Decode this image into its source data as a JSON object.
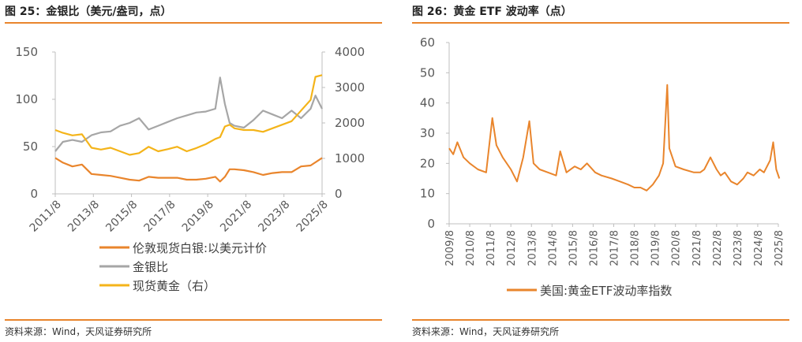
{
  "colors": {
    "accent": "#e9852c",
    "silver": "#a6a6a6",
    "gold": "#f4b41a",
    "rule": "#e9852c"
  },
  "left": {
    "title": "图 25：金银比（美元/盎司，点）",
    "source": "资料来源：Wind，天风证券研究所"
  },
  "right": {
    "title": "图 26：黄金 ETF 波动率（点）",
    "source": "资料来源：Wind，天风证券研究所"
  },
  "chart_data": [
    {
      "type": "line",
      "x_tick_labels": [
        "2011/8",
        "2013/8",
        "2015/8",
        "2017/8",
        "2019/8",
        "2021/8",
        "2023/8",
        "2025/8"
      ],
      "ylim_left": [
        0,
        150
      ],
      "yticks_left": [
        "0",
        "50",
        "100",
        "150"
      ],
      "ylim_right": [
        0,
        4000
      ],
      "yticks_right": [
        "0",
        "1000",
        "2000",
        "3000",
        "4000"
      ],
      "legend_position": "bottom",
      "series": [
        {
          "name": "伦敦现货白银:以美元计价",
          "axis": "left",
          "color": "#e9852c",
          "x": [
            2011.6,
            2012.0,
            2012.5,
            2013.0,
            2013.5,
            2014.0,
            2014.5,
            2015.0,
            2015.5,
            2016.0,
            2016.5,
            2017.0,
            2017.5,
            2018.0,
            2018.5,
            2019.0,
            2019.5,
            2020.0,
            2020.25,
            2020.5,
            2020.75,
            2021.0,
            2021.5,
            2022.0,
            2022.5,
            2023.0,
            2023.5,
            2024.0,
            2024.5,
            2025.0,
            2025.6
          ],
          "values": [
            38,
            33,
            29,
            31,
            21,
            20,
            19,
            17,
            15,
            14,
            18,
            17,
            17,
            17,
            15,
            15,
            16,
            18,
            13,
            18,
            26,
            26,
            25,
            23,
            20,
            22,
            23,
            23,
            29,
            30,
            38
          ]
        },
        {
          "name": "金银比",
          "axis": "left",
          "color": "#a6a6a6",
          "x": [
            2011.6,
            2012.0,
            2012.5,
            2013.0,
            2013.5,
            2014.0,
            2014.5,
            2015.0,
            2015.5,
            2016.0,
            2016.5,
            2017.0,
            2017.5,
            2018.0,
            2018.5,
            2019.0,
            2019.5,
            2020.0,
            2020.25,
            2020.5,
            2020.75,
            2021.0,
            2021.5,
            2022.0,
            2022.5,
            2023.0,
            2023.5,
            2024.0,
            2024.5,
            2025.0,
            2025.25,
            2025.6
          ],
          "values": [
            45,
            55,
            57,
            55,
            62,
            65,
            66,
            72,
            75,
            80,
            68,
            72,
            76,
            80,
            83,
            86,
            87,
            90,
            123,
            95,
            75,
            72,
            70,
            78,
            88,
            84,
            80,
            88,
            80,
            90,
            104,
            90
          ]
        },
        {
          "name": "现货黄金（右）",
          "axis": "right",
          "color": "#f4b41a",
          "x": [
            2011.6,
            2012.0,
            2012.5,
            2013.0,
            2013.5,
            2014.0,
            2014.5,
            2015.0,
            2015.5,
            2016.0,
            2016.5,
            2017.0,
            2017.5,
            2018.0,
            2018.5,
            2019.0,
            2019.5,
            2020.0,
            2020.25,
            2020.5,
            2020.75,
            2021.0,
            2021.5,
            2022.0,
            2022.5,
            2023.0,
            2023.5,
            2024.0,
            2024.5,
            2025.0,
            2025.25,
            2025.6
          ],
          "values": [
            1800,
            1720,
            1650,
            1680,
            1300,
            1250,
            1300,
            1200,
            1100,
            1150,
            1330,
            1200,
            1260,
            1330,
            1200,
            1290,
            1400,
            1550,
            1600,
            1900,
            1950,
            1850,
            1800,
            1800,
            1750,
            1850,
            1950,
            2050,
            2350,
            2650,
            3300,
            3350
          ]
        }
      ]
    },
    {
      "type": "line",
      "x_tick_labels": [
        "2009/8",
        "2010/8",
        "2011/8",
        "2012/8",
        "2013/8",
        "2014/8",
        "2015/8",
        "2016/8",
        "2017/8",
        "2018/8",
        "2019/8",
        "2020/8",
        "2021/8",
        "2022/8",
        "2023/8",
        "2024/8",
        "2025/8"
      ],
      "ylim": [
        0,
        60
      ],
      "yticks": [
        "0",
        "10",
        "20",
        "30",
        "40",
        "50",
        "60"
      ],
      "legend_position": "bottom",
      "series": [
        {
          "name": "美国:黄金ETF波动率指数",
          "color": "#e9852c",
          "x": [
            2009.6,
            2009.8,
            2010.0,
            2010.3,
            2010.6,
            2011.0,
            2011.4,
            2011.7,
            2011.9,
            2012.2,
            2012.6,
            2012.9,
            2013.2,
            2013.5,
            2013.7,
            2014.0,
            2014.4,
            2014.8,
            2015.0,
            2015.3,
            2015.7,
            2016.0,
            2016.3,
            2016.7,
            2017.0,
            2017.5,
            2017.9,
            2018.3,
            2018.6,
            2018.9,
            2019.2,
            2019.5,
            2019.8,
            2020.0,
            2020.2,
            2020.3,
            2020.45,
            2020.6,
            2021.0,
            2021.5,
            2021.8,
            2022.0,
            2022.3,
            2022.6,
            2022.8,
            2023.0,
            2023.3,
            2023.6,
            2023.9,
            2024.1,
            2024.4,
            2024.7,
            2024.9,
            2025.2,
            2025.35,
            2025.5,
            2025.65
          ],
          "values": [
            25,
            23,
            27,
            22,
            20,
            18,
            17,
            35,
            26,
            22,
            18,
            14,
            22,
            34,
            20,
            18,
            17,
            16,
            24,
            17,
            19,
            18,
            20,
            17,
            16,
            15,
            14,
            13,
            12,
            12,
            11,
            13,
            16,
            20,
            46,
            25,
            22,
            19,
            18,
            17,
            17,
            18,
            22,
            18,
            16,
            17,
            14,
            13,
            15,
            17,
            16,
            18,
            17,
            21,
            27,
            18,
            15
          ]
        }
      ]
    }
  ]
}
